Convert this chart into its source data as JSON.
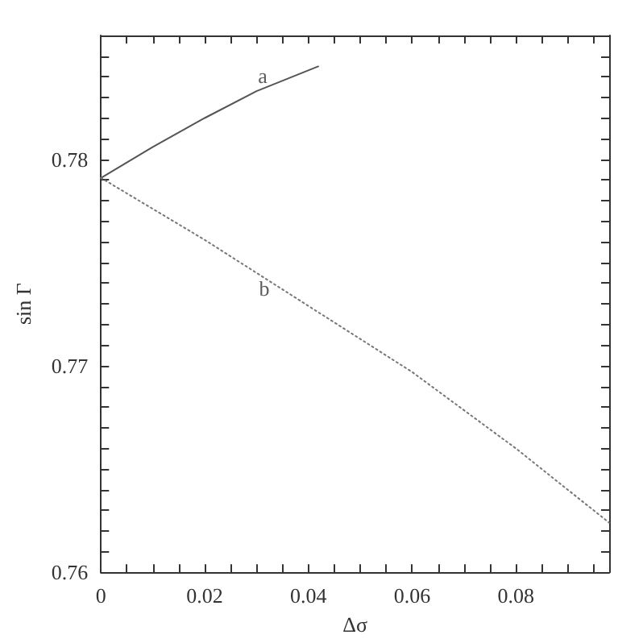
{
  "chart_data": {
    "type": "line",
    "xlabel": "Δσ",
    "ylabel": "sin Γ",
    "xlim": [
      0,
      0.098
    ],
    "ylim": [
      0.76,
      0.786
    ],
    "xticks": [
      0,
      {
        "value": 0.005,
        "label": null
      },
      {
        "value": 0.01,
        "label": null
      },
      {
        "value": 0.015,
        "label": null
      },
      0.02,
      {
        "value": 0.025,
        "label": null
      },
      {
        "value": 0.03,
        "label": null
      },
      {
        "value": 0.035,
        "label": null
      },
      0.04,
      {
        "value": 0.045,
        "label": null
      },
      {
        "value": 0.05,
        "label": null
      },
      {
        "value": 0.055,
        "label": null
      },
      0.06,
      {
        "value": 0.065,
        "label": null
      },
      {
        "value": 0.07,
        "label": null
      },
      {
        "value": 0.075,
        "label": null
      },
      0.08,
      {
        "value": 0.085,
        "label": null
      },
      {
        "value": 0.09,
        "label": null
      },
      {
        "value": 0.095,
        "label": null
      }
    ],
    "yticks": [
      0.76,
      {
        "value": 0.761,
        "label": null
      },
      {
        "value": 0.762,
        "label": null
      },
      {
        "value": 0.763,
        "label": null
      },
      {
        "value": 0.764,
        "label": null
      },
      {
        "value": 0.765,
        "label": null
      },
      {
        "value": 0.766,
        "label": null
      },
      {
        "value": 0.767,
        "label": null
      },
      {
        "value": 0.768,
        "label": null
      },
      {
        "value": 0.769,
        "label": null
      },
      0.77,
      {
        "value": 0.771,
        "label": null
      },
      {
        "value": 0.772,
        "label": null
      },
      {
        "value": 0.773,
        "label": null
      },
      {
        "value": 0.774,
        "label": null
      },
      {
        "value": 0.775,
        "label": null
      },
      {
        "value": 0.776,
        "label": null
      },
      {
        "value": 0.777,
        "label": null
      },
      {
        "value": 0.778,
        "label": null
      },
      {
        "value": 0.779,
        "label": null
      },
      0.78,
      {
        "value": 0.781,
        "label": null
      },
      {
        "value": 0.782,
        "label": null
      },
      {
        "value": 0.783,
        "label": null
      },
      {
        "value": 0.784,
        "label": null
      },
      {
        "value": 0.785,
        "label": null
      },
      {
        "value": 0.786,
        "label": null
      }
    ],
    "series": [
      {
        "color": "#555555",
        "line_style": "solid",
        "x": [
          0,
          0.01,
          0.02,
          0.03,
          0.0419
        ],
        "values": [
          0.7791,
          0.7806,
          0.782,
          0.7833,
          0.7845
        ]
      },
      {
        "color": "#777777",
        "line_style": "dotted",
        "x": [
          0,
          0.02,
          0.04,
          0.06,
          0.08,
          0.098
        ],
        "values": [
          0.7791,
          0.7761,
          0.7729,
          0.7697,
          0.766,
          0.7624
        ]
      }
    ],
    "annotations": [
      {
        "text": "a",
        "x": 0.0312,
        "y": 0.7834
      },
      {
        "text": "b",
        "x": 0.0315,
        "y": 0.7744
      }
    ],
    "marker": "none"
  }
}
